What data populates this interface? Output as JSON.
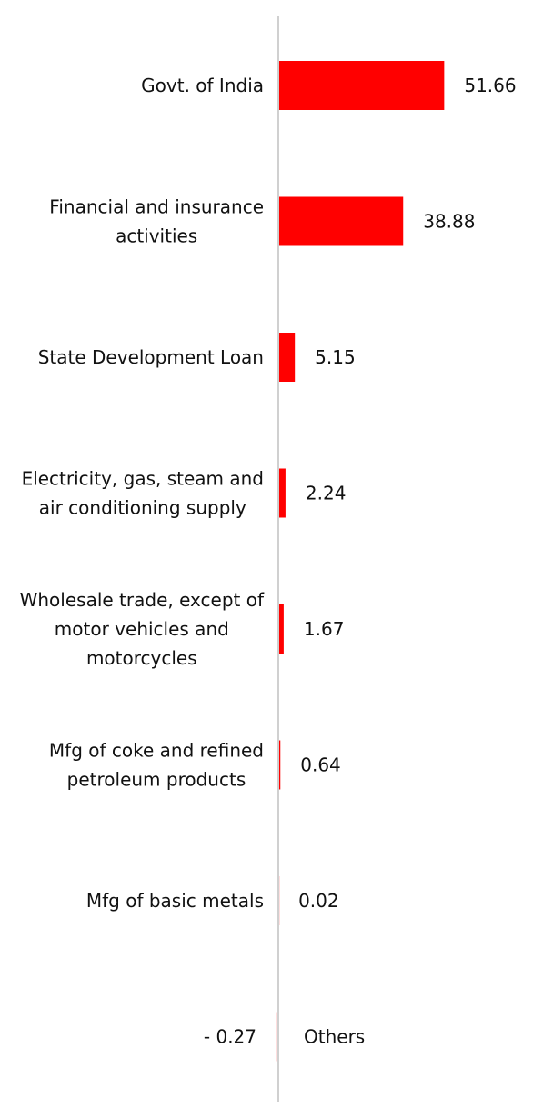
{
  "chart_data": {
    "type": "bar",
    "orientation": "horizontal",
    "bar_color": "#ff0000",
    "axis_color": "#d0d0d0",
    "categories": [
      [
        "Govt. of India"
      ],
      [
        "Financial and insurance",
        "activities"
      ],
      [
        "State Development Loan"
      ],
      [
        "Electricity, gas, steam and",
        "air conditioning supply"
      ],
      [
        "Wholesale trade, except of",
        "motor vehicles and",
        "motorcycles"
      ],
      [
        "Mfg of coke and refined",
        "petroleum products"
      ],
      [
        "Mfg of basic metals"
      ],
      [
        "Others"
      ]
    ],
    "values": [
      51.66,
      38.88,
      5.15,
      2.24,
      1.67,
      0.64,
      0.02,
      -0.27
    ],
    "value_labels": [
      "51.66",
      "38.88",
      "5.15",
      "2.24",
      "1.67",
      "0.64",
      "0.02",
      "-  0.27"
    ],
    "grid": false,
    "legend": "none"
  }
}
